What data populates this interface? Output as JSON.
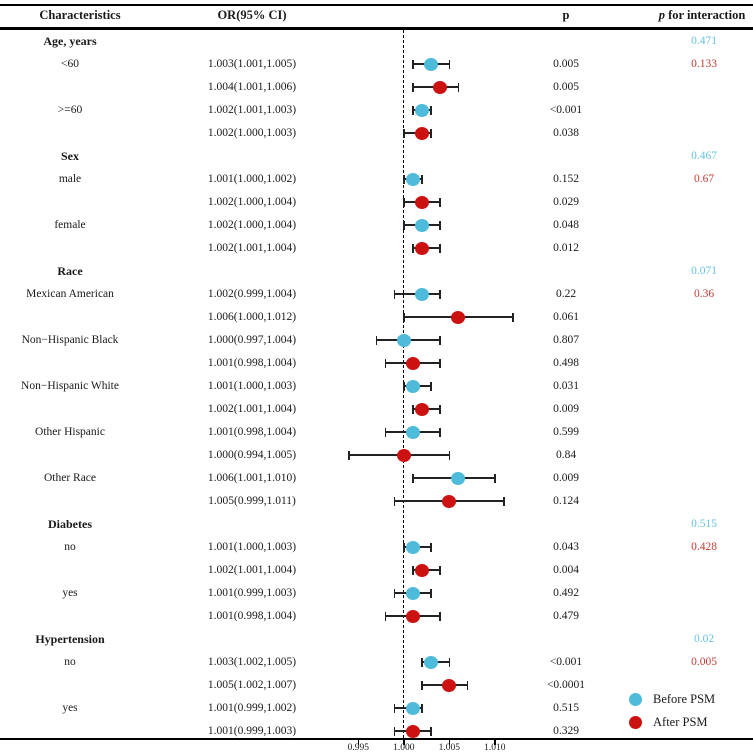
{
  "header": {
    "characteristics": "Characteristics",
    "or_ci": "OR(95% CI)",
    "p": "p",
    "p_interaction_p": "p",
    "p_interaction_rest": " for interaction"
  },
  "legend": [
    {
      "label": "Before PSM",
      "series": "before"
    },
    {
      "label": "After PSM",
      "series": "after"
    }
  ],
  "colors": {
    "before": "#4FBBDB",
    "after": "#CC1111",
    "p_text_before": "#66C4E1",
    "p_text_after": "#C53C35",
    "line": "#222222",
    "text": "#1A1A1A"
  },
  "chart_data": {
    "type": "forest",
    "x_axis": {
      "tick_labels": [
        "0.995",
        "1.000",
        "1.005",
        "1.010"
      ],
      "tick_values": [
        0.995,
        1.0,
        1.005,
        1.01
      ],
      "reference_line": 1.0,
      "xlim": [
        0.9925,
        1.0125
      ]
    },
    "legend_position": "bottom-right",
    "rows": [
      {
        "kind": "group",
        "label": "Age, years",
        "p_int": "0.471",
        "p_int_series": "before"
      },
      {
        "kind": "est",
        "label": "<60",
        "or_ci": "1.003(1.001,1.005)",
        "est": 1.003,
        "lo": 1.001,
        "hi": 1.005,
        "p": "0.005",
        "series": "before",
        "p_int": "0.133",
        "p_int_series": "after"
      },
      {
        "kind": "est",
        "label": "",
        "or_ci": "1.004(1.001,1.006)",
        "est": 1.004,
        "lo": 1.001,
        "hi": 1.006,
        "p": "0.005",
        "series": "after"
      },
      {
        "kind": "est",
        "label": ">=60",
        "or_ci": "1.002(1.001,1.003)",
        "est": 1.002,
        "lo": 1.001,
        "hi": 1.003,
        "p": "<0.001",
        "series": "before"
      },
      {
        "kind": "est",
        "label": "",
        "or_ci": "1.002(1.000,1.003)",
        "est": 1.002,
        "lo": 1.0,
        "hi": 1.003,
        "p": "0.038",
        "series": "after"
      },
      {
        "kind": "group",
        "label": "Sex",
        "p_int": "0.467",
        "p_int_series": "before"
      },
      {
        "kind": "est",
        "label": "male",
        "or_ci": "1.001(1.000,1.002)",
        "est": 1.001,
        "lo": 1.0,
        "hi": 1.002,
        "p": "0.152",
        "series": "before",
        "p_int": "0.67",
        "p_int_series": "after"
      },
      {
        "kind": "est",
        "label": "",
        "or_ci": "1.002(1.000,1.004)",
        "est": 1.002,
        "lo": 1.0,
        "hi": 1.004,
        "p": "0.029",
        "series": "after"
      },
      {
        "kind": "est",
        "label": "female",
        "or_ci": "1.002(1.000,1.004)",
        "est": 1.002,
        "lo": 1.0,
        "hi": 1.004,
        "p": "0.048",
        "series": "before"
      },
      {
        "kind": "est",
        "label": "",
        "or_ci": "1.002(1.001,1.004)",
        "est": 1.002,
        "lo": 1.001,
        "hi": 1.004,
        "p": "0.012",
        "series": "after"
      },
      {
        "kind": "group",
        "label": "Race",
        "p_int": "0.071",
        "p_int_series": "before"
      },
      {
        "kind": "est",
        "label": "Mexican American",
        "or_ci": "1.002(0.999,1.004)",
        "est": 1.002,
        "lo": 0.999,
        "hi": 1.004,
        "p": "0.22",
        "series": "before",
        "p_int": "0.36",
        "p_int_series": "after"
      },
      {
        "kind": "est",
        "label": "",
        "or_ci": "1.006(1.000,1.012)",
        "est": 1.006,
        "lo": 1.0,
        "hi": 1.012,
        "p": "0.061",
        "series": "after"
      },
      {
        "kind": "est",
        "label": "Non−Hispanic Black",
        "or_ci": "1.000(0.997,1.004)",
        "est": 1.0,
        "lo": 0.997,
        "hi": 1.004,
        "p": "0.807",
        "series": "before"
      },
      {
        "kind": "est",
        "label": "",
        "or_ci": "1.001(0.998,1.004)",
        "est": 1.001,
        "lo": 0.998,
        "hi": 1.004,
        "p": "0.498",
        "series": "after"
      },
      {
        "kind": "est",
        "label": "Non−Hispanic White",
        "or_ci": "1.001(1.000,1.003)",
        "est": 1.001,
        "lo": 1.0,
        "hi": 1.003,
        "p": "0.031",
        "series": "before"
      },
      {
        "kind": "est",
        "label": "",
        "or_ci": "1.002(1.001,1.004)",
        "est": 1.002,
        "lo": 1.001,
        "hi": 1.004,
        "p": "0.009",
        "series": "after"
      },
      {
        "kind": "est",
        "label": "Other Hispanic",
        "or_ci": "1.001(0.998,1.004)",
        "est": 1.001,
        "lo": 0.998,
        "hi": 1.004,
        "p": "0.599",
        "series": "before"
      },
      {
        "kind": "est",
        "label": "",
        "or_ci": "1.000(0.994,1.005)",
        "est": 1.0,
        "lo": 0.994,
        "hi": 1.005,
        "p": "0.84",
        "series": "after"
      },
      {
        "kind": "est",
        "label": "Other Race",
        "or_ci": "1.006(1.001,1.010)",
        "est": 1.006,
        "lo": 1.001,
        "hi": 1.01,
        "p": "0.009",
        "series": "before"
      },
      {
        "kind": "est",
        "label": "",
        "or_ci": "1.005(0.999,1.011)",
        "est": 1.005,
        "lo": 0.999,
        "hi": 1.011,
        "p": "0.124",
        "series": "after"
      },
      {
        "kind": "group",
        "label": "Diabetes",
        "p_int": "0.515",
        "p_int_series": "before"
      },
      {
        "kind": "est",
        "label": "no",
        "or_ci": "1.001(1.000,1.003)",
        "est": 1.001,
        "lo": 1.0,
        "hi": 1.003,
        "p": "0.043",
        "series": "before",
        "p_int": "0.428",
        "p_int_series": "after"
      },
      {
        "kind": "est",
        "label": "",
        "or_ci": "1.002(1.001,1.004)",
        "est": 1.002,
        "lo": 1.001,
        "hi": 1.004,
        "p": "0.004",
        "series": "after"
      },
      {
        "kind": "est",
        "label": "yes",
        "or_ci": "1.001(0.999,1.003)",
        "est": 1.001,
        "lo": 0.999,
        "hi": 1.003,
        "p": "0.492",
        "series": "before"
      },
      {
        "kind": "est",
        "label": "",
        "or_ci": "1.001(0.998,1.004)",
        "est": 1.001,
        "lo": 0.998,
        "hi": 1.004,
        "p": "0.479",
        "series": "after"
      },
      {
        "kind": "group",
        "label": "Hypertension",
        "p_int": "0.02",
        "p_int_series": "before"
      },
      {
        "kind": "est",
        "label": "no",
        "or_ci": "1.003(1.002,1.005)",
        "est": 1.003,
        "lo": 1.002,
        "hi": 1.005,
        "p": "<0.001",
        "series": "before",
        "p_int": "0.005",
        "p_int_series": "after"
      },
      {
        "kind": "est",
        "label": "",
        "or_ci": "1.005(1.002,1.007)",
        "est": 1.005,
        "lo": 1.002,
        "hi": 1.007,
        "p": "<0.0001",
        "series": "after"
      },
      {
        "kind": "est",
        "label": "yes",
        "or_ci": "1.001(0.999,1.002)",
        "est": 1.001,
        "lo": 0.999,
        "hi": 1.002,
        "p": "0.515",
        "series": "before"
      },
      {
        "kind": "est",
        "label": "",
        "or_ci": "1.001(0.999,1.003)",
        "est": 1.001,
        "lo": 0.999,
        "hi": 1.003,
        "p": "0.329",
        "series": "after"
      }
    ]
  }
}
